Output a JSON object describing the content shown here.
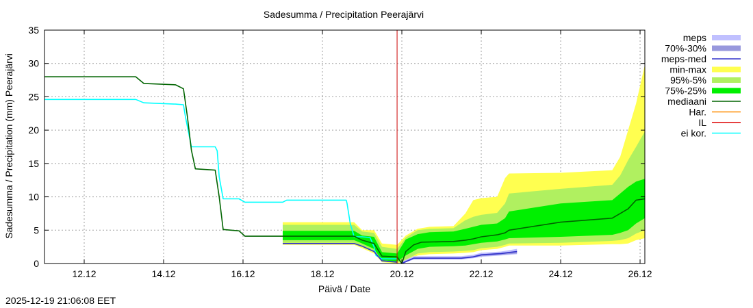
{
  "chart_data": {
    "type": "area",
    "title": "Sadesumma / Precipitation  Peerajärvi",
    "ylabel": "Sadesumma / Precipitation (mm)  Peerajärvi",
    "xlabel": "Päivä / Date",
    "ylim": [
      0,
      35
    ],
    "y_ticks": [
      0,
      5,
      10,
      15,
      20,
      25,
      30,
      35
    ],
    "xlim": [
      11.0,
      26.12
    ],
    "x_ticks": [
      {
        "value": 12,
        "label": "12.12"
      },
      {
        "value": 14,
        "label": "14.12"
      },
      {
        "value": 16,
        "label": "16.12"
      },
      {
        "value": 18,
        "label": "18.12"
      },
      {
        "value": 20,
        "label": "20.12"
      },
      {
        "value": 22,
        "label": "22.12"
      },
      {
        "value": 24,
        "label": "24.12"
      },
      {
        "value": 26,
        "label": "26.12"
      }
    ],
    "grid": true,
    "legend_position": "right",
    "now_marker_x": 19.88,
    "series": [
      {
        "key": "min_max",
        "name": "min-max",
        "kind": "band",
        "color": "#ffff50",
        "x": [
          17.0,
          18.8,
          19.0,
          19.3,
          19.5,
          19.88,
          20.1,
          20.4,
          20.7,
          21.3,
          21.6,
          21.8,
          22.0,
          22.4,
          22.6,
          22.7,
          24.0,
          25.3,
          25.5,
          25.7,
          25.9,
          26.12
        ],
        "upper": [
          6.2,
          6.2,
          5.0,
          5.0,
          3.0,
          2.8,
          4.2,
          5.2,
          5.5,
          5.6,
          7.5,
          9.5,
          9.8,
          10.0,
          12.8,
          13.5,
          13.6,
          14.0,
          16.0,
          20.0,
          24.0,
          29.8
        ],
        "lower": [
          2.8,
          2.8,
          2.3,
          1.5,
          0.2,
          0.0,
          0.4,
          1.2,
          1.4,
          1.5,
          1.6,
          1.7,
          2.0,
          2.2,
          2.5,
          2.7,
          2.7,
          2.9,
          2.9,
          3.0,
          3.5,
          3.8
        ]
      },
      {
        "key": "p95_5",
        "name": "95%-5%",
        "kind": "band",
        "color": "#b0f060",
        "x": [
          17.0,
          18.8,
          19.0,
          19.3,
          19.5,
          19.88,
          20.1,
          20.4,
          20.7,
          21.3,
          21.6,
          21.8,
          22.0,
          22.4,
          22.6,
          22.7,
          24.0,
          25.3,
          25.5,
          25.7,
          25.9,
          26.12
        ],
        "upper": [
          5.8,
          5.8,
          4.8,
          4.6,
          2.5,
          2.2,
          3.9,
          5.0,
          5.2,
          5.3,
          6.5,
          7.0,
          7.3,
          7.6,
          9.0,
          10.5,
          11.2,
          11.8,
          13.2,
          15.5,
          17.5,
          19.8
        ],
        "lower": [
          3.1,
          3.1,
          2.6,
          1.8,
          0.3,
          0.1,
          0.6,
          1.5,
          1.7,
          1.8,
          1.9,
          2.0,
          2.3,
          2.5,
          2.8,
          3.0,
          3.1,
          3.4,
          3.5,
          3.8,
          4.5,
          5.0
        ]
      },
      {
        "key": "p75_25",
        "name": "75%-25%",
        "kind": "band",
        "color": "#00f000",
        "x": [
          17.0,
          18.8,
          19.0,
          19.3,
          19.5,
          19.88,
          20.1,
          20.4,
          20.7,
          21.3,
          21.6,
          21.8,
          22.0,
          22.4,
          22.6,
          22.7,
          24.0,
          25.3,
          25.5,
          25.7,
          25.9,
          26.12
        ],
        "upper": [
          4.9,
          4.9,
          4.2,
          4.0,
          1.7,
          1.5,
          3.6,
          4.4,
          4.7,
          4.8,
          5.2,
          5.5,
          5.8,
          6.0,
          6.8,
          7.8,
          9.0,
          9.5,
          10.5,
          11.5,
          12.3,
          12.7
        ],
        "lower": [
          3.5,
          3.5,
          3.0,
          2.2,
          0.5,
          0.3,
          1.2,
          2.2,
          2.5,
          2.6,
          2.7,
          2.9,
          3.1,
          3.3,
          3.6,
          3.8,
          4.0,
          4.3,
          4.6,
          5.0,
          6.0,
          6.8
        ]
      },
      {
        "key": "meps",
        "name": "meps",
        "kind": "band",
        "color": "#c0c0ff",
        "x": [
          20.0,
          20.3,
          21.5,
          21.8,
          22.0,
          22.5,
          22.9
        ],
        "upper": [
          0.3,
          1.1,
          1.1,
          1.3,
          1.6,
          1.8,
          2.2
        ],
        "lower": [
          0.0,
          0.6,
          0.6,
          0.8,
          1.0,
          1.2,
          1.4
        ]
      },
      {
        "key": "p70_30",
        "name": "70%-30%",
        "kind": "band",
        "color": "#9898dd",
        "x": [
          20.0,
          20.3,
          21.5,
          21.8,
          22.0,
          22.5,
          22.9
        ],
        "upper": [
          0.2,
          0.9,
          0.9,
          1.1,
          1.4,
          1.6,
          1.9
        ],
        "lower": [
          0.0,
          0.7,
          0.7,
          0.9,
          1.1,
          1.3,
          1.5
        ]
      },
      {
        "key": "ei_kor",
        "name": "ei kor.",
        "kind": "line",
        "color": "#00ffff",
        "x": [
          11.0,
          13.3,
          13.5,
          14.3,
          14.5,
          14.55,
          14.6,
          14.7,
          15.3,
          15.35,
          15.4,
          15.5,
          15.9,
          16.05,
          17.0,
          17.1,
          18.6,
          18.62,
          18.7,
          18.8,
          19.0,
          19.2,
          19.3,
          19.35,
          19.5,
          19.88
        ],
        "y": [
          24.6,
          24.6,
          24.1,
          23.9,
          23.8,
          22.0,
          20.5,
          17.5,
          17.5,
          16.9,
          13.0,
          9.7,
          9.7,
          9.2,
          9.2,
          9.5,
          9.5,
          9.0,
          6.0,
          4.0,
          4.0,
          3.9,
          2.5,
          1.2,
          0.7,
          0.7
        ]
      },
      {
        "key": "mediaani",
        "name": "mediaani",
        "kind": "line",
        "color": "#006400",
        "x": [
          11.0,
          13.3,
          13.5,
          14.3,
          14.5,
          14.6,
          14.7,
          14.8,
          15.3,
          15.4,
          15.5,
          15.9,
          16.05,
          18.8,
          19.0,
          19.3,
          19.5,
          19.88,
          20.0,
          20.1,
          20.3,
          20.5,
          21.3,
          21.6,
          21.8,
          22.0,
          22.4,
          22.6,
          22.7,
          24.0,
          25.3,
          25.5,
          25.7,
          25.9,
          26.12
        ],
        "y": [
          28.0,
          28.0,
          27.0,
          26.8,
          26.2,
          22.0,
          17.0,
          14.2,
          14.0,
          10.0,
          5.1,
          4.9,
          4.1,
          4.1,
          3.5,
          3.0,
          1.1,
          1.0,
          0.0,
          1.8,
          2.8,
          3.2,
          3.3,
          3.5,
          3.7,
          4.0,
          4.3,
          4.6,
          5.0,
          6.2,
          6.8,
          7.5,
          8.2,
          9.5,
          9.7
        ]
      },
      {
        "key": "meps_med",
        "name": "meps-med",
        "kind": "line",
        "color": "#3030cc",
        "x": [
          17.0,
          18.8,
          19.0,
          19.3,
          19.5,
          19.88
        ],
        "y": [
          3.0,
          3.0,
          2.6,
          1.8,
          0.4,
          0.2
        ],
        "x2": [
          20.0,
          20.3,
          21.5,
          21.8,
          22.0,
          22.5,
          22.9
        ],
        "y2": [
          0.0,
          0.8,
          0.8,
          1.0,
          1.3,
          1.5,
          1.8
        ]
      },
      {
        "key": "har",
        "name": "Har.",
        "kind": "line",
        "color": "#ff8c00",
        "x": [],
        "y": []
      },
      {
        "key": "il",
        "name": "IL",
        "kind": "line",
        "color": "#dd0000",
        "x": [],
        "y": []
      }
    ],
    "legend": [
      {
        "key": "meps",
        "label": "meps",
        "color": "#c0c0ff",
        "style": "box"
      },
      {
        "key": "p70_30",
        "label": "70%-30%",
        "color": "#9898dd",
        "style": "box"
      },
      {
        "key": "meps_med",
        "label": "meps-med",
        "color": "#3030cc",
        "style": "line"
      },
      {
        "key": "min_max",
        "label": "min-max",
        "color": "#ffff50",
        "style": "box"
      },
      {
        "key": "p95_5",
        "label": "95%-5%",
        "color": "#b0f060",
        "style": "box"
      },
      {
        "key": "p75_25",
        "label": "75%-25%",
        "color": "#00f000",
        "style": "box"
      },
      {
        "key": "mediaani",
        "label": "mediaani",
        "color": "#006400",
        "style": "line"
      },
      {
        "key": "har",
        "label": "Har.",
        "color": "#ff8c00",
        "style": "line"
      },
      {
        "key": "il",
        "label": "IL",
        "color": "#dd0000",
        "style": "line"
      },
      {
        "key": "ei_kor",
        "label": "ei kor.",
        "color": "#00ffff",
        "style": "line"
      }
    ]
  },
  "timestamp": "2025-12-19 21:06:08 EET"
}
